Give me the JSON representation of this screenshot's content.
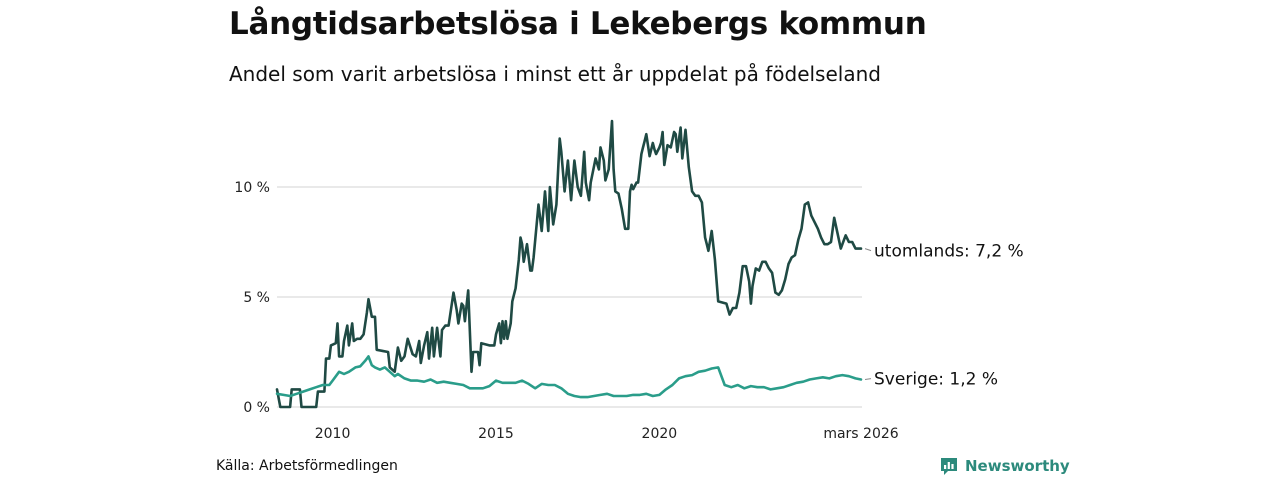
{
  "title": "Långtidsarbetslösa i Lekebergs kommun",
  "subtitle": "Andel som varit arbetslösa i minst ett år uppdelat på födelseland",
  "source": "Källa: Arbetsförmedlingen",
  "brand": {
    "name": "Newsworthy",
    "icon": "newsworthy-logo-icon"
  },
  "colors": {
    "utomlands": "#1f4a44",
    "sverige": "#2a9d8a",
    "grid": "#dcdcdc"
  },
  "chart_data": {
    "type": "line",
    "title": "Långtidsarbetslösa i Lekebergs kommun",
    "xlabel": "",
    "ylabel": "",
    "xlim": [
      2008.3,
      2026.2
    ],
    "ylim": [
      0,
      12
    ],
    "y_ticks": [
      0,
      5,
      10
    ],
    "y_tick_labels": [
      "0 %",
      "5 %",
      "10 %"
    ],
    "x_ticks": [
      2010,
      2015,
      2020,
      2026.17
    ],
    "x_tick_labels": [
      "2010",
      "2015",
      "2020",
      "mars 2026"
    ],
    "grid": true,
    "series": [
      {
        "name": "utomlands",
        "end_label": "utomlands: 7,2 %",
        "points": [
          [
            2008.3,
            0.8
          ],
          [
            2008.4,
            0.0
          ],
          [
            2008.7,
            0.0
          ],
          [
            2008.75,
            0.8
          ],
          [
            2009.0,
            0.8
          ],
          [
            2009.05,
            0.0
          ],
          [
            2009.5,
            0.0
          ],
          [
            2009.55,
            0.7
          ],
          [
            2009.75,
            0.7
          ],
          [
            2009.8,
            2.2
          ],
          [
            2009.9,
            2.2
          ],
          [
            2009.95,
            2.8
          ],
          [
            2010.1,
            2.9
          ],
          [
            2010.15,
            3.8
          ],
          [
            2010.2,
            2.3
          ],
          [
            2010.3,
            2.3
          ],
          [
            2010.35,
            3.0
          ],
          [
            2010.45,
            3.7
          ],
          [
            2010.5,
            2.8
          ],
          [
            2010.6,
            3.8
          ],
          [
            2010.65,
            3.0
          ],
          [
            2010.75,
            3.1
          ],
          [
            2010.85,
            3.1
          ],
          [
            2010.95,
            3.3
          ],
          [
            2011.05,
            4.3
          ],
          [
            2011.1,
            4.9
          ],
          [
            2011.2,
            4.1
          ],
          [
            2011.3,
            4.1
          ],
          [
            2011.35,
            2.6
          ],
          [
            2011.7,
            2.5
          ],
          [
            2011.75,
            1.8
          ],
          [
            2011.9,
            1.6
          ],
          [
            2012.0,
            2.7
          ],
          [
            2012.1,
            2.1
          ],
          [
            2012.2,
            2.3
          ],
          [
            2012.3,
            3.1
          ],
          [
            2012.45,
            2.4
          ],
          [
            2012.55,
            2.3
          ],
          [
            2012.65,
            3.0
          ],
          [
            2012.7,
            2.0
          ],
          [
            2012.8,
            2.8
          ],
          [
            2012.9,
            3.4
          ],
          [
            2012.95,
            2.2
          ],
          [
            2013.05,
            3.6
          ],
          [
            2013.1,
            2.3
          ],
          [
            2013.2,
            3.6
          ],
          [
            2013.3,
            2.3
          ],
          [
            2013.35,
            3.5
          ],
          [
            2013.45,
            3.7
          ],
          [
            2013.55,
            3.7
          ],
          [
            2013.7,
            5.2
          ],
          [
            2013.8,
            4.4
          ],
          [
            2013.85,
            3.8
          ],
          [
            2013.95,
            4.7
          ],
          [
            2014.0,
            4.6
          ],
          [
            2014.05,
            3.9
          ],
          [
            2014.15,
            5.3
          ],
          [
            2014.25,
            1.6
          ],
          [
            2014.3,
            2.5
          ],
          [
            2014.45,
            2.5
          ],
          [
            2014.5,
            1.9
          ],
          [
            2014.55,
            2.9
          ],
          [
            2014.8,
            2.8
          ],
          [
            2014.95,
            2.8
          ],
          [
            2015.0,
            3.3
          ],
          [
            2015.1,
            3.8
          ],
          [
            2015.15,
            2.9
          ],
          [
            2015.2,
            3.9
          ],
          [
            2015.25,
            3.1
          ],
          [
            2015.3,
            3.9
          ],
          [
            2015.35,
            3.1
          ],
          [
            2015.45,
            3.8
          ],
          [
            2015.5,
            4.8
          ],
          [
            2015.6,
            5.4
          ],
          [
            2015.7,
            6.7
          ],
          [
            2015.75,
            7.7
          ],
          [
            2015.8,
            7.4
          ],
          [
            2015.85,
            6.6
          ],
          [
            2015.95,
            7.4
          ],
          [
            2016.05,
            6.2
          ],
          [
            2016.1,
            6.2
          ],
          [
            2016.15,
            6.8
          ],
          [
            2016.3,
            9.2
          ],
          [
            2016.4,
            8.0
          ],
          [
            2016.5,
            9.8
          ],
          [
            2016.6,
            8.0
          ],
          [
            2016.65,
            10.0
          ],
          [
            2016.75,
            8.3
          ],
          [
            2016.85,
            9.2
          ],
          [
            2016.95,
            12.2
          ],
          [
            2017.0,
            11.6
          ],
          [
            2017.1,
            9.8
          ],
          [
            2017.2,
            11.2
          ],
          [
            2017.3,
            9.4
          ],
          [
            2017.4,
            11.2
          ],
          [
            2017.5,
            10.0
          ],
          [
            2017.6,
            9.6
          ],
          [
            2017.65,
            10.6
          ],
          [
            2017.7,
            11.6
          ],
          [
            2017.75,
            10.2
          ],
          [
            2017.85,
            9.4
          ],
          [
            2017.9,
            10.2
          ],
          [
            2018.05,
            11.3
          ],
          [
            2018.15,
            10.8
          ],
          [
            2018.2,
            11.8
          ],
          [
            2018.3,
            11.2
          ],
          [
            2018.35,
            10.3
          ],
          [
            2018.45,
            10.8
          ],
          [
            2018.55,
            13.0
          ],
          [
            2018.6,
            10.8
          ],
          [
            2018.65,
            9.8
          ],
          [
            2018.75,
            9.7
          ],
          [
            2018.85,
            9.0
          ],
          [
            2018.95,
            8.1
          ],
          [
            2019.05,
            8.1
          ],
          [
            2019.1,
            9.8
          ],
          [
            2019.15,
            10.1
          ],
          [
            2019.2,
            9.9
          ],
          [
            2019.3,
            10.2
          ],
          [
            2019.35,
            10.2
          ],
          [
            2019.45,
            11.5
          ],
          [
            2019.5,
            11.8
          ],
          [
            2019.55,
            12.1
          ],
          [
            2019.6,
            12.4
          ],
          [
            2019.7,
            11.4
          ],
          [
            2019.8,
            12.0
          ],
          [
            2019.85,
            11.7
          ],
          [
            2019.9,
            11.5
          ],
          [
            2020.0,
            11.8
          ],
          [
            2020.05,
            12.0
          ],
          [
            2020.1,
            12.5
          ],
          [
            2020.15,
            11.0
          ],
          [
            2020.25,
            11.9
          ],
          [
            2020.35,
            11.8
          ],
          [
            2020.45,
            12.5
          ],
          [
            2020.5,
            12.4
          ],
          [
            2020.55,
            11.6
          ],
          [
            2020.65,
            12.7
          ],
          [
            2020.7,
            11.3
          ],
          [
            2020.8,
            12.6
          ],
          [
            2020.9,
            10.9
          ],
          [
            2021.0,
            9.8
          ],
          [
            2021.1,
            9.6
          ],
          [
            2021.2,
            9.6
          ],
          [
            2021.3,
            9.3
          ],
          [
            2021.4,
            7.7
          ],
          [
            2021.45,
            7.4
          ],
          [
            2021.5,
            7.1
          ],
          [
            2021.6,
            8.0
          ],
          [
            2021.7,
            6.7
          ],
          [
            2021.8,
            4.8
          ],
          [
            2022.05,
            4.7
          ],
          [
            2022.15,
            4.2
          ],
          [
            2022.25,
            4.5
          ],
          [
            2022.35,
            4.5
          ],
          [
            2022.45,
            5.2
          ],
          [
            2022.55,
            6.4
          ],
          [
            2022.65,
            6.4
          ],
          [
            2022.75,
            5.7
          ],
          [
            2022.8,
            4.7
          ],
          [
            2022.85,
            5.5
          ],
          [
            2022.95,
            6.3
          ],
          [
            2023.05,
            6.2
          ],
          [
            2023.15,
            6.6
          ],
          [
            2023.25,
            6.6
          ],
          [
            2023.35,
            6.3
          ],
          [
            2023.45,
            6.1
          ],
          [
            2023.55,
            5.2
          ],
          [
            2023.65,
            5.1
          ],
          [
            2023.75,
            5.3
          ],
          [
            2023.85,
            5.8
          ],
          [
            2023.95,
            6.5
          ],
          [
            2024.05,
            6.8
          ],
          [
            2024.15,
            6.9
          ],
          [
            2024.25,
            7.6
          ],
          [
            2024.35,
            8.1
          ],
          [
            2024.45,
            9.2
          ],
          [
            2024.55,
            9.3
          ],
          [
            2024.65,
            8.7
          ],
          [
            2024.75,
            8.4
          ],
          [
            2024.85,
            8.1
          ],
          [
            2024.95,
            7.7
          ],
          [
            2025.05,
            7.4
          ],
          [
            2025.15,
            7.4
          ],
          [
            2025.25,
            7.5
          ],
          [
            2025.35,
            8.6
          ],
          [
            2025.45,
            7.9
          ],
          [
            2025.55,
            7.2
          ],
          [
            2025.65,
            7.6
          ],
          [
            2025.7,
            7.8
          ],
          [
            2025.8,
            7.5
          ],
          [
            2025.9,
            7.5
          ],
          [
            2026.0,
            7.2
          ],
          [
            2026.17,
            7.2
          ]
        ]
      },
      {
        "name": "Sverige",
        "end_label": "Sverige: 1,2 %",
        "points": [
          [
            2008.3,
            0.6
          ],
          [
            2008.5,
            0.55
          ],
          [
            2008.7,
            0.5
          ],
          [
            2008.9,
            0.6
          ],
          [
            2009.1,
            0.7
          ],
          [
            2009.3,
            0.8
          ],
          [
            2009.5,
            0.9
          ],
          [
            2009.7,
            1.0
          ],
          [
            2009.9,
            1.0
          ],
          [
            2010.0,
            1.2
          ],
          [
            2010.2,
            1.6
          ],
          [
            2010.35,
            1.5
          ],
          [
            2010.5,
            1.6
          ],
          [
            2010.7,
            1.8
          ],
          [
            2010.85,
            1.85
          ],
          [
            2011.0,
            2.1
          ],
          [
            2011.1,
            2.3
          ],
          [
            2011.2,
            1.9
          ],
          [
            2011.3,
            1.8
          ],
          [
            2011.45,
            1.7
          ],
          [
            2011.6,
            1.8
          ],
          [
            2011.75,
            1.6
          ],
          [
            2011.9,
            1.4
          ],
          [
            2012.0,
            1.5
          ],
          [
            2012.2,
            1.3
          ],
          [
            2012.4,
            1.2
          ],
          [
            2012.6,
            1.2
          ],
          [
            2012.8,
            1.15
          ],
          [
            2013.0,
            1.25
          ],
          [
            2013.2,
            1.1
          ],
          [
            2013.4,
            1.15
          ],
          [
            2013.6,
            1.1
          ],
          [
            2013.8,
            1.05
          ],
          [
            2014.0,
            1.0
          ],
          [
            2014.2,
            0.85
          ],
          [
            2014.4,
            0.85
          ],
          [
            2014.6,
            0.85
          ],
          [
            2014.8,
            0.95
          ],
          [
            2015.0,
            1.2
          ],
          [
            2015.2,
            1.1
          ],
          [
            2015.4,
            1.1
          ],
          [
            2015.6,
            1.1
          ],
          [
            2015.8,
            1.2
          ],
          [
            2016.0,
            1.05
          ],
          [
            2016.2,
            0.85
          ],
          [
            2016.4,
            1.05
          ],
          [
            2016.6,
            1.0
          ],
          [
            2016.8,
            1.0
          ],
          [
            2017.0,
            0.85
          ],
          [
            2017.2,
            0.6
          ],
          [
            2017.4,
            0.5
          ],
          [
            2017.6,
            0.45
          ],
          [
            2017.8,
            0.45
          ],
          [
            2018.0,
            0.5
          ],
          [
            2018.2,
            0.55
          ],
          [
            2018.4,
            0.6
          ],
          [
            2018.6,
            0.5
          ],
          [
            2018.8,
            0.5
          ],
          [
            2019.0,
            0.5
          ],
          [
            2019.2,
            0.55
          ],
          [
            2019.4,
            0.55
          ],
          [
            2019.6,
            0.6
          ],
          [
            2019.8,
            0.5
          ],
          [
            2020.0,
            0.55
          ],
          [
            2020.2,
            0.8
          ],
          [
            2020.4,
            1.0
          ],
          [
            2020.6,
            1.3
          ],
          [
            2020.8,
            1.4
          ],
          [
            2021.0,
            1.45
          ],
          [
            2021.2,
            1.6
          ],
          [
            2021.4,
            1.65
          ],
          [
            2021.6,
            1.75
          ],
          [
            2021.8,
            1.8
          ],
          [
            2022.0,
            1.0
          ],
          [
            2022.2,
            0.9
          ],
          [
            2022.4,
            1.0
          ],
          [
            2022.6,
            0.85
          ],
          [
            2022.8,
            0.95
          ],
          [
            2023.0,
            0.9
          ],
          [
            2023.2,
            0.9
          ],
          [
            2023.4,
            0.8
          ],
          [
            2023.6,
            0.85
          ],
          [
            2023.8,
            0.9
          ],
          [
            2024.0,
            1.0
          ],
          [
            2024.2,
            1.1
          ],
          [
            2024.4,
            1.15
          ],
          [
            2024.6,
            1.25
          ],
          [
            2024.8,
            1.3
          ],
          [
            2025.0,
            1.35
          ],
          [
            2025.2,
            1.3
          ],
          [
            2025.4,
            1.4
          ],
          [
            2025.6,
            1.45
          ],
          [
            2025.8,
            1.4
          ],
          [
            2026.0,
            1.3
          ],
          [
            2026.17,
            1.25
          ]
        ]
      }
    ]
  }
}
